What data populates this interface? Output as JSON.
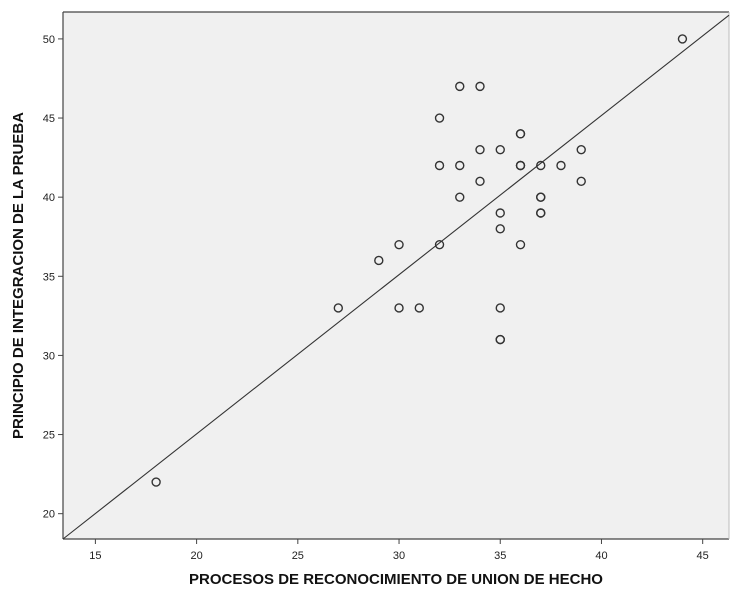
{
  "chart_data": {
    "type": "scatter",
    "xlabel": "PROCESOS DE RECONOCIMIENTO DE UNION DE HECHO",
    "ylabel": "PRINCIPIO DE INTEGRACION DE LA PRUEBA",
    "xlim": [
      13.4,
      46.3
    ],
    "ylim": [
      18.4,
      51.7
    ],
    "xticks": [
      15,
      20,
      25,
      30,
      35,
      40,
      45
    ],
    "yticks": [
      20,
      25,
      30,
      35,
      40,
      45,
      50
    ],
    "grid": false,
    "legend": "none",
    "background_color": "#f0f0f0",
    "marker_color": "#333333",
    "fit_line": {
      "type": "linear",
      "from": [
        13.4,
        18.4
      ],
      "to": [
        46.3,
        51.5
      ]
    },
    "points": [
      {
        "x": 44,
        "y": 50
      },
      {
        "x": 33,
        "y": 47
      },
      {
        "x": 34,
        "y": 47
      },
      {
        "x": 32,
        "y": 45
      },
      {
        "x": 36,
        "y": 44
      },
      {
        "x": 36,
        "y": 44
      },
      {
        "x": 34,
        "y": 43
      },
      {
        "x": 35,
        "y": 43
      },
      {
        "x": 39,
        "y": 43
      },
      {
        "x": 32,
        "y": 42
      },
      {
        "x": 33,
        "y": 42
      },
      {
        "x": 36,
        "y": 42
      },
      {
        "x": 36,
        "y": 42
      },
      {
        "x": 37,
        "y": 42
      },
      {
        "x": 38,
        "y": 42
      },
      {
        "x": 34,
        "y": 41
      },
      {
        "x": 39,
        "y": 41
      },
      {
        "x": 33,
        "y": 40
      },
      {
        "x": 37,
        "y": 40
      },
      {
        "x": 37,
        "y": 40
      },
      {
        "x": 35,
        "y": 39
      },
      {
        "x": 37,
        "y": 39
      },
      {
        "x": 37,
        "y": 39
      },
      {
        "x": 35,
        "y": 38
      },
      {
        "x": 30,
        "y": 37
      },
      {
        "x": 32,
        "y": 37
      },
      {
        "x": 36,
        "y": 37
      },
      {
        "x": 29,
        "y": 36
      },
      {
        "x": 27,
        "y": 33
      },
      {
        "x": 30,
        "y": 33
      },
      {
        "x": 31,
        "y": 33
      },
      {
        "x": 35,
        "y": 33
      },
      {
        "x": 35,
        "y": 31
      },
      {
        "x": 35,
        "y": 31
      },
      {
        "x": 18,
        "y": 22
      }
    ]
  }
}
